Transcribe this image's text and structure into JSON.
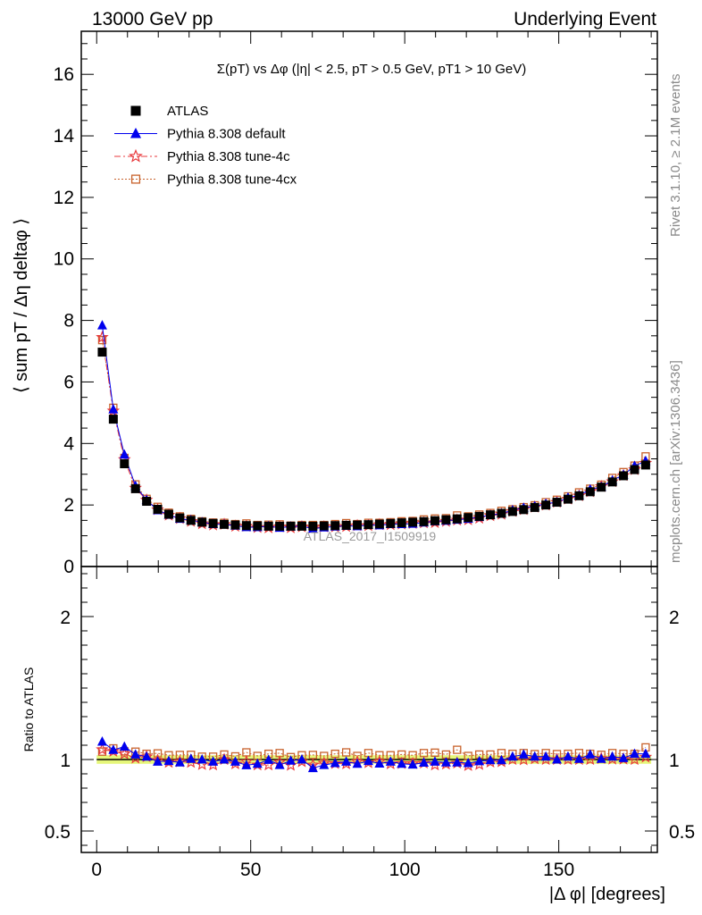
{
  "header": {
    "left": "13000 GeV pp",
    "right": "Underlying Event"
  },
  "side_labels": {
    "rivet": "Rivet 3.1.10, ≥ 2.1M events",
    "mcplots": "mcplots.cern.ch [arXiv:1306.3436]"
  },
  "watermark": "ATLAS_2017_I1509919",
  "chart_data": [
    {
      "panel": "main",
      "type": "scatter",
      "title": "Σ(pT) vs Δφ (|η| < 2.5, pT > 0.5 GeV, pT1 > 10 GeV)",
      "ylabel": "⟨ sum pT / Δη deltaφ ⟩",
      "xlabel": "",
      "xlim": [
        -5,
        182
      ],
      "ylim": [
        0,
        17.4
      ],
      "y_ticks": [
        0,
        2,
        4,
        6,
        8,
        10,
        12,
        14,
        16
      ],
      "legend_position": "top-left",
      "x": [
        1.8,
        5.4,
        9,
        12.6,
        16.2,
        19.8,
        23.4,
        27,
        30.6,
        34.2,
        37.8,
        41.4,
        45,
        48.6,
        52.2,
        55.8,
        59.4,
        63,
        66.6,
        70.2,
        73.8,
        77.4,
        81,
        84.6,
        88.2,
        91.8,
        95.4,
        99,
        102.6,
        106.2,
        109.8,
        113.4,
        117,
        120.6,
        124.2,
        127.8,
        131.4,
        135,
        138.6,
        142.2,
        145.8,
        149.4,
        153,
        156.6,
        160.2,
        163.8,
        167.4,
        171,
        174.6,
        178.2
      ],
      "series": [
        {
          "name": "ATLAS",
          "marker": "square-filled",
          "color": "#000000",
          "values": [
            6.97,
            4.79,
            3.34,
            2.53,
            2.12,
            1.86,
            1.7,
            1.58,
            1.5,
            1.44,
            1.4,
            1.37,
            1.35,
            1.33,
            1.32,
            1.31,
            1.31,
            1.31,
            1.31,
            1.31,
            1.32,
            1.33,
            1.34,
            1.35,
            1.36,
            1.38,
            1.4,
            1.42,
            1.44,
            1.46,
            1.49,
            1.52,
            1.55,
            1.59,
            1.63,
            1.68,
            1.73,
            1.79,
            1.85,
            1.92,
            2.0,
            2.09,
            2.19,
            2.3,
            2.43,
            2.58,
            2.75,
            2.95,
            3.15,
            3.3
          ]
        },
        {
          "name": "Pythia 8.308 default",
          "marker": "triangle-filled",
          "color": "#0000ee",
          "values": [
            7.84,
            5.11,
            3.64,
            2.62,
            2.16,
            1.83,
            1.68,
            1.55,
            1.51,
            1.44,
            1.38,
            1.37,
            1.33,
            1.28,
            1.28,
            1.31,
            1.26,
            1.3,
            1.31,
            1.23,
            1.27,
            1.3,
            1.32,
            1.31,
            1.35,
            1.34,
            1.38,
            1.38,
            1.39,
            1.43,
            1.47,
            1.49,
            1.52,
            1.55,
            1.61,
            1.67,
            1.72,
            1.83,
            1.91,
            1.96,
            2.04,
            2.09,
            2.24,
            2.31,
            2.51,
            2.59,
            2.8,
            2.98,
            3.27,
            3.43
          ]
        },
        {
          "name": "Pythia 8.308 tune-4c",
          "marker": "star-open",
          "color": "#e8393c",
          "values": [
            7.45,
            5.06,
            3.48,
            2.55,
            2.16,
            1.85,
            1.67,
            1.56,
            1.47,
            1.39,
            1.35,
            1.37,
            1.31,
            1.31,
            1.27,
            1.26,
            1.29,
            1.26,
            1.29,
            1.26,
            1.29,
            1.29,
            1.3,
            1.33,
            1.33,
            1.36,
            1.36,
            1.38,
            1.4,
            1.42,
            1.43,
            1.47,
            1.51,
            1.52,
            1.57,
            1.65,
            1.7,
            1.79,
            1.85,
            1.93,
            2.0,
            2.09,
            2.19,
            2.3,
            2.43,
            2.6,
            2.76,
            2.96,
            3.15,
            3.36
          ]
        },
        {
          "name": "Pythia 8.308 tune-4cx",
          "marker": "square-open",
          "color": "#c8622c",
          "values": [
            7.36,
            5.16,
            3.53,
            2.67,
            2.2,
            1.94,
            1.75,
            1.63,
            1.55,
            1.47,
            1.43,
            1.42,
            1.38,
            1.4,
            1.35,
            1.36,
            1.37,
            1.33,
            1.35,
            1.35,
            1.35,
            1.38,
            1.41,
            1.38,
            1.42,
            1.42,
            1.44,
            1.47,
            1.48,
            1.53,
            1.56,
            1.57,
            1.66,
            1.63,
            1.69,
            1.74,
            1.81,
            1.86,
            1.93,
            1.99,
            2.09,
            2.17,
            2.28,
            2.41,
            2.53,
            2.66,
            2.88,
            3.07,
            3.28,
            3.58
          ]
        }
      ]
    },
    {
      "panel": "ratio",
      "type": "scatter",
      "ylabel": "Ratio to ATLAS",
      "xlabel": "|Δ φ| [degrees]",
      "xlim": [
        -5,
        182
      ],
      "ylim": [
        0.35,
        2.35
      ],
      "x_ticks": [
        0,
        50,
        100,
        150
      ],
      "y_ticks": [
        0.5,
        1,
        2
      ],
      "reference_line": 1,
      "band_color": "#e6f77a",
      "x": [
        1.8,
        5.4,
        9,
        12.6,
        16.2,
        19.8,
        23.4,
        27,
        30.6,
        34.2,
        37.8,
        41.4,
        45,
        48.6,
        52.2,
        55.8,
        59.4,
        63,
        66.6,
        70.2,
        73.8,
        77.4,
        81,
        84.6,
        88.2,
        91.8,
        95.4,
        99,
        102.6,
        106.2,
        109.8,
        113.4,
        117,
        120.6,
        124.2,
        127.8,
        131.4,
        135,
        138.6,
        142.2,
        145.8,
        149.4,
        153,
        156.6,
        160.2,
        163.8,
        167.4,
        171,
        174.6,
        178.2
      ],
      "series": [
        {
          "name": "Pythia 8.308 default",
          "marker": "triangle-filled",
          "color": "#0000ee",
          "values": [
            1.125,
            1.067,
            1.09,
            1.035,
            1.02,
            0.985,
            0.99,
            0.98,
            1.005,
            1.0,
            0.985,
            1.0,
            0.985,
            0.96,
            0.97,
            0.998,
            0.962,
            0.992,
            1.0,
            0.94,
            0.962,
            0.975,
            0.985,
            0.97,
            0.99,
            0.972,
            0.985,
            0.97,
            0.965,
            0.978,
            0.985,
            0.98,
            0.98,
            0.975,
            0.988,
            0.995,
            0.995,
            1.02,
            1.035,
            1.02,
            1.02,
            1.0,
            1.02,
            1.005,
            1.035,
            1.005,
            1.02,
            1.01,
            1.04,
            1.04
          ]
        },
        {
          "name": "Pythia 8.308 tune-4c",
          "marker": "star-open",
          "color": "#e8393c",
          "values": [
            1.07,
            1.057,
            1.04,
            1.01,
            1.02,
            0.995,
            0.98,
            0.985,
            0.98,
            0.965,
            0.962,
            1.0,
            0.97,
            0.985,
            0.962,
            0.962,
            0.982,
            0.96,
            0.985,
            0.962,
            0.975,
            0.972,
            0.97,
            0.985,
            0.978,
            0.985,
            0.97,
            0.972,
            0.972,
            0.975,
            0.962,
            0.968,
            0.975,
            0.958,
            0.965,
            0.982,
            0.985,
            1.0,
            0.998,
            1.005,
            1.0,
            1.0,
            1.0,
            1.0,
            1.0,
            1.007,
            1.003,
            1.003,
            1.0,
            1.017
          ]
        },
        {
          "name": "Pythia 8.308 tune-4cx",
          "marker": "square-open",
          "color": "#c8622c",
          "values": [
            1.055,
            1.078,
            1.057,
            1.055,
            1.04,
            1.043,
            1.03,
            1.032,
            1.033,
            1.02,
            1.02,
            1.035,
            1.022,
            1.05,
            1.025,
            1.04,
            1.045,
            1.017,
            1.03,
            1.032,
            1.025,
            1.04,
            1.05,
            1.025,
            1.045,
            1.03,
            1.03,
            1.035,
            1.03,
            1.045,
            1.048,
            1.035,
            1.068,
            1.025,
            1.035,
            1.035,
            1.045,
            1.04,
            1.045,
            1.038,
            1.045,
            1.038,
            1.04,
            1.045,
            1.04,
            1.033,
            1.045,
            1.04,
            1.04,
            1.085
          ]
        }
      ]
    }
  ]
}
